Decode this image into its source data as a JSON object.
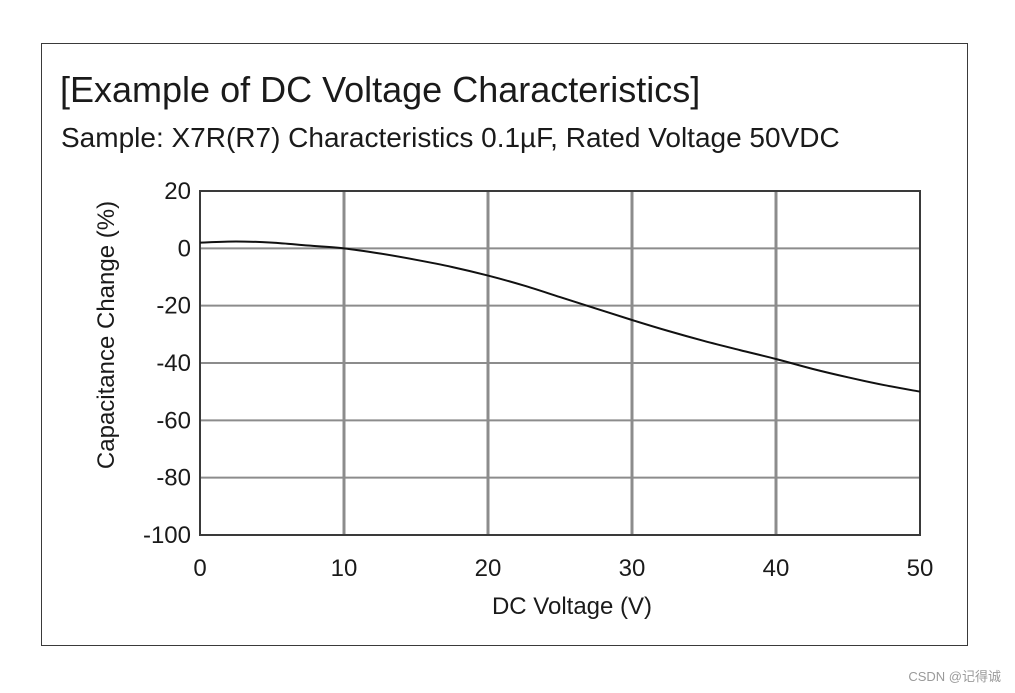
{
  "chart_data": {
    "type": "line",
    "title": "[Example of DC Voltage Characteristics]",
    "subtitle": "Sample: X7R(R7) Characteristics 0.1µF, Rated Voltage 50VDC",
    "xlabel": "DC Voltage (V)",
    "ylabel": "Capacitance Change (%)",
    "xlim": [
      0,
      50
    ],
    "ylim": [
      -100,
      20
    ],
    "x_ticks": [
      0,
      10,
      20,
      30,
      40,
      50
    ],
    "y_ticks": [
      20,
      0,
      -20,
      -40,
      -60,
      -80,
      -100
    ],
    "grid": true,
    "series": [
      {
        "x": [
          0,
          2.5,
          5,
          7.5,
          10,
          12.5,
          15,
          17.5,
          20,
          22.5,
          25,
          27.5,
          30,
          32.5,
          35,
          37.5,
          40,
          42.5,
          45,
          47.5,
          50
        ],
        "y": [
          2,
          2.4,
          2,
          1,
          0,
          -1.8,
          -4,
          -6.5,
          -9.5,
          -13,
          -17,
          -21,
          -25,
          -28.8,
          -32.3,
          -35.5,
          -38.6,
          -42,
          -45,
          -47.7,
          -50
        ]
      }
    ]
  },
  "colors": {
    "line": "#111111",
    "grid": "#8c8c8c",
    "axes": "#3a3a3a",
    "text": "#1a1a1a"
  },
  "watermark": "CSDN @记得诚"
}
